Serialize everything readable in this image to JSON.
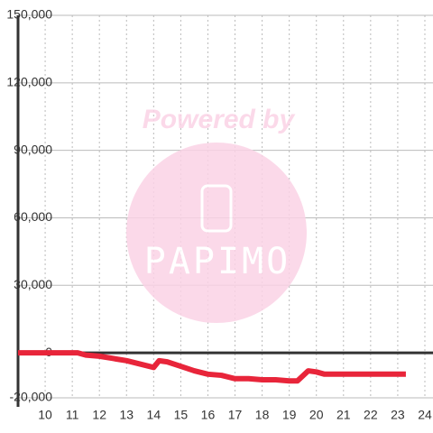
{
  "chart_data": {
    "type": "line",
    "watermark_title": "Powered by",
    "watermark_logo": "PAPIMO",
    "x": [
      9,
      11,
      11.2,
      11.5,
      12,
      12.5,
      13,
      13.5,
      14,
      14.2,
      14.5,
      15,
      15.5,
      16,
      16.5,
      17,
      17.5,
      18,
      18.5,
      19,
      19.3,
      19.7,
      20,
      20.3,
      21,
      23.3
    ],
    "series": [
      {
        "color": "#e8253a",
        "values": [
          0,
          0,
          0,
          -1000,
          -1500,
          -2500,
          -3500,
          -5000,
          -6500,
          -3500,
          -4000,
          -6000,
          -8000,
          -9500,
          -10000,
          -11500,
          -11500,
          -12000,
          -12000,
          -12500,
          -12500,
          -8000,
          -8500,
          -9500,
          -9500,
          -9500
        ]
      }
    ],
    "xlim": [
      9,
      24.3
    ],
    "xticks": [
      10,
      11,
      12,
      13,
      14,
      15,
      16,
      17,
      18,
      19,
      20,
      21,
      22,
      23,
      24
    ],
    "ylim": [
      -20000,
      150000
    ],
    "yticks": [
      {
        "value": -20000,
        "label": "-20,000"
      },
      0,
      {
        "value": 30000,
        "label": "30,000"
      },
      {
        "value": 60000,
        "label": "60,000"
      },
      {
        "value": 90000,
        "label": "90,000"
      },
      {
        "value": 120000,
        "label": "120,000"
      },
      {
        "value": 150000,
        "label": "150,000"
      }
    ],
    "grid": true
  }
}
